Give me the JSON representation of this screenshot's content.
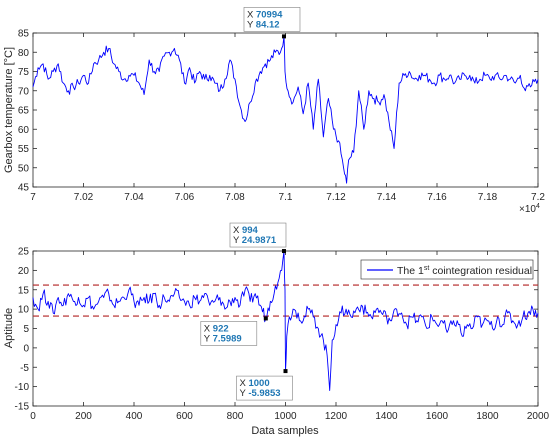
{
  "chart_data": [
    {
      "type": "line",
      "title": "",
      "xlabel": "",
      "ylabel": "Gearbox temperature [°C]",
      "x_exponent_label": "×10",
      "x_exponent_power": "4",
      "xlim": [
        70000,
        72000
      ],
      "ylim": [
        45,
        85
      ],
      "xticks": [
        70000,
        70200,
        70400,
        70600,
        70800,
        71000,
        71200,
        71400,
        71600,
        71800,
        72000
      ],
      "xtick_labels": [
        "7",
        "7.02",
        "7.04",
        "7.06",
        "7.08",
        "7.1",
        "7.12",
        "7.14",
        "7.16",
        "7.18",
        "7.2"
      ],
      "yticks": [
        45,
        50,
        55,
        60,
        65,
        70,
        75,
        80,
        85
      ],
      "ytick_labels": [
        "45",
        "50",
        "55",
        "60",
        "65",
        "70",
        "75",
        "80",
        "85"
      ],
      "line_color": "#0000ff",
      "grid": false,
      "series": [
        {
          "x": [
            70000,
            70020,
            70040,
            70060,
            70080,
            70100,
            70120,
            70140,
            70160,
            70180,
            70200,
            70220,
            70240,
            70260,
            70280,
            70300,
            70320,
            70340,
            70360,
            70380,
            70400,
            70420,
            70440,
            70460,
            70480,
            70500,
            70520,
            70540,
            70560,
            70580,
            70600,
            70620,
            70640,
            70660,
            70680,
            70700,
            70720,
            70740,
            70760,
            70780,
            70800,
            70820,
            70840,
            70860,
            70880,
            70900,
            70920,
            70940,
            70960,
            70980,
            70994,
            70998,
            71010,
            71030,
            71050,
            71070,
            71090,
            71110,
            71130,
            71150,
            71170,
            71190,
            71210,
            71230,
            71242,
            71250,
            71270,
            71290,
            71310,
            71330,
            71350,
            71370,
            71390,
            71410,
            71430,
            71450,
            71470,
            71490,
            71510,
            71530,
            71550,
            71570,
            71590,
            71610,
            71630,
            71650,
            71670,
            71690,
            71710,
            71730,
            71750,
            71770,
            71790,
            71810,
            71830,
            71850,
            71870,
            71890,
            71910,
            71930,
            71950,
            71970,
            71990,
            72000
          ],
          "y": [
            71,
            76,
            77,
            73,
            75,
            77,
            72,
            70,
            71,
            72,
            74,
            72,
            77,
            78,
            80,
            81,
            77,
            75,
            73,
            74,
            74,
            72,
            69,
            78,
            75,
            75,
            79,
            80,
            81,
            78,
            72,
            76,
            72,
            75,
            73,
            74,
            72,
            70,
            73,
            78,
            73,
            66,
            62,
            67,
            72,
            75,
            77,
            78,
            80,
            80,
            84.12,
            75,
            70,
            67,
            71,
            64,
            72,
            60,
            73,
            58,
            68,
            60,
            57,
            50,
            46,
            52,
            54,
            70,
            60,
            70,
            68,
            67,
            69,
            62,
            55,
            72,
            74,
            75,
            73,
            74,
            74,
            73,
            72,
            74,
            73,
            74,
            72,
            73,
            74,
            74,
            72,
            73,
            74,
            73,
            74,
            73,
            74,
            73,
            72,
            74,
            70,
            71,
            73,
            73
          ]
        }
      ],
      "datatips": [
        {
          "x_label": "X",
          "x_value": "70994",
          "y_label": "Y",
          "y_value": "84.12",
          "x": 70994,
          "y": 84.12
        }
      ]
    },
    {
      "type": "line",
      "title": "",
      "xlabel": "Data samples",
      "ylabel": "Aptitude",
      "xlim": [
        0,
        2000
      ],
      "ylim": [
        -15,
        25
      ],
      "xticks": [
        0,
        200,
        400,
        600,
        800,
        1000,
        1200,
        1400,
        1600,
        1800,
        2000
      ],
      "xtick_labels": [
        "0",
        "200",
        "400",
        "600",
        "800",
        "1000",
        "1200",
        "1400",
        "1600",
        "1800",
        "2000"
      ],
      "yticks": [
        -15,
        -10,
        -5,
        0,
        5,
        10,
        15,
        20,
        25
      ],
      "ytick_labels": [
        "-15",
        "-10",
        "-5",
        "0",
        "5",
        "10",
        "15",
        "20",
        "25"
      ],
      "line_color": "#0000ff",
      "threshold_color": "#b22222",
      "thresholds": [
        16.2,
        8.2
      ],
      "grid": false,
      "legend": {
        "location": "top-right",
        "prefix": "The 1",
        "superscript": "st",
        "suffix": " cointegration residual"
      },
      "series": [
        {
          "name": "The 1st cointegration residual",
          "x": [
            0,
            20,
            40,
            60,
            80,
            100,
            120,
            140,
            160,
            180,
            200,
            220,
            240,
            260,
            280,
            300,
            320,
            340,
            360,
            380,
            400,
            420,
            440,
            460,
            480,
            500,
            520,
            540,
            560,
            580,
            600,
            620,
            640,
            660,
            680,
            700,
            720,
            740,
            760,
            780,
            800,
            820,
            840,
            860,
            880,
            900,
            922,
            940,
            960,
            975,
            985,
            994,
            998,
            1000,
            1005,
            1015,
            1030,
            1050,
            1070,
            1090,
            1110,
            1130,
            1150,
            1165,
            1175,
            1185,
            1200,
            1220,
            1240,
            1260,
            1280,
            1300,
            1320,
            1340,
            1360,
            1380,
            1400,
            1420,
            1440,
            1460,
            1480,
            1500,
            1520,
            1540,
            1560,
            1580,
            1600,
            1620,
            1640,
            1660,
            1680,
            1700,
            1720,
            1740,
            1760,
            1780,
            1800,
            1820,
            1840,
            1860,
            1880,
            1900,
            1920,
            1940,
            1960,
            1980,
            2000
          ],
          "y": [
            13,
            10,
            14,
            12,
            9,
            13,
            11,
            14,
            12,
            13,
            11,
            13,
            10,
            12,
            13,
            14,
            11,
            12,
            13,
            15,
            12,
            11,
            13,
            12,
            14,
            11,
            13,
            12,
            14,
            13,
            12,
            11,
            13,
            12,
            14,
            11,
            12,
            13,
            10,
            12,
            13,
            11,
            15,
            12,
            14,
            11,
            7.6,
            12,
            16,
            18,
            20,
            24.99,
            15,
            -5.99,
            3,
            8,
            10,
            9,
            7,
            10,
            8,
            5,
            2,
            -2,
            -11,
            2,
            6,
            9,
            10,
            8,
            10,
            11,
            9,
            8,
            10,
            9,
            8,
            7,
            10,
            9,
            6,
            8,
            7,
            8,
            5,
            8,
            6,
            7,
            4,
            6,
            7,
            3,
            6,
            5,
            8,
            6,
            7,
            5,
            8,
            6,
            9,
            7,
            6,
            8,
            9,
            10,
            9
          ]
        }
      ],
      "datatips": [
        {
          "x_label": "X",
          "x_value": "994",
          "y_label": "Y",
          "y_value": "24.9871",
          "x": 994,
          "y": 24.99,
          "placement": "above"
        },
        {
          "x_label": "X",
          "x_value": "922",
          "y_label": "Y",
          "y_value": "7.5989",
          "x": 922,
          "y": 7.6,
          "placement": "below-left"
        },
        {
          "x_label": "X",
          "x_value": "1000",
          "y_label": "Y",
          "y_value": "-5.9853",
          "x": 1000,
          "y": -5.99,
          "placement": "below"
        }
      ]
    }
  ]
}
